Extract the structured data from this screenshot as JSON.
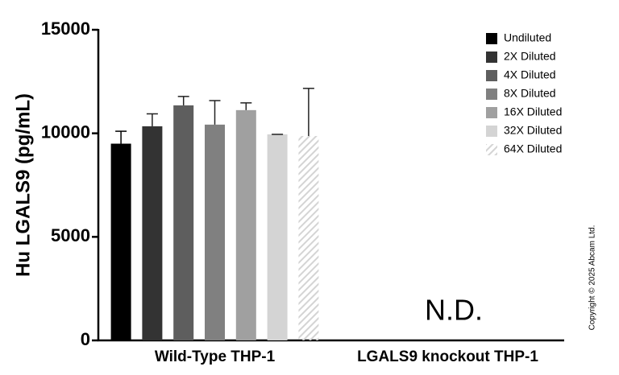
{
  "chart_data": {
    "type": "bar",
    "ylabel": "Hu LGALS9 (pg/mL)",
    "categories": [
      "Wild-Type THP-1",
      "LGALS9 knockout THP-1"
    ],
    "series": [
      {
        "name": "Undiluted",
        "color": "#000000",
        "values": [
          9500,
          null
        ],
        "errors": [
          600,
          null
        ]
      },
      {
        "name": "2X Diluted",
        "color": "#333333",
        "values": [
          10340,
          null
        ],
        "errors": [
          600,
          null
        ]
      },
      {
        "name": "4X Diluted",
        "color": "#5e5e5e",
        "values": [
          11350,
          null
        ],
        "errors": [
          430,
          null
        ]
      },
      {
        "name": "8X Diluted",
        "color": "#808080",
        "values": [
          10420,
          null
        ],
        "errors": [
          1160,
          null
        ]
      },
      {
        "name": "16X Diluted",
        "color": "#a0a0a0",
        "values": [
          11120,
          null
        ],
        "errors": [
          350,
          null
        ]
      },
      {
        "name": "32X Diluted",
        "color": "#d4d4d4",
        "values": [
          9950,
          null
        ],
        "errors": [
          0,
          null
        ]
      },
      {
        "name": "64X Diluted",
        "color": "#d4d4d4",
        "hatch": true,
        "values": [
          9870,
          null
        ],
        "errors": [
          2300,
          null
        ]
      }
    ],
    "ylim": [
      0,
      15000
    ],
    "yticks": [
      0,
      5000,
      10000,
      15000
    ],
    "annotation": "N.D.",
    "copyright": "Copyright © 2025 Abcam Ltd.",
    "legend": "top-right"
  }
}
